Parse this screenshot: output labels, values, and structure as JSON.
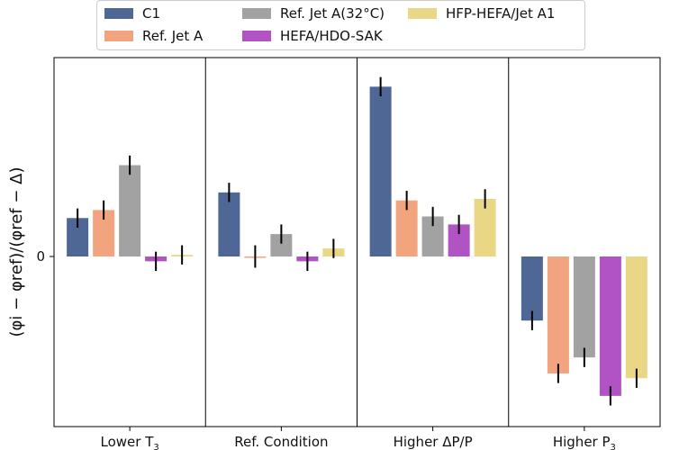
{
  "chart_data": {
    "type": "bar",
    "title": "",
    "xlabel": "",
    "ylabel": "(φi − φref)/(φref − Δ)",
    "ylim": [
      -1.0,
      1.1
    ],
    "grid": false,
    "legend_position": "top",
    "y_ticks": [
      {
        "value": 0,
        "label": "0"
      }
    ],
    "categories": [
      {
        "key": "lower_t3",
        "base": "Lower T",
        "sub": "3"
      },
      {
        "key": "ref_condition",
        "base": "Ref. Condition",
        "sub": ""
      },
      {
        "key": "higher_dp",
        "base": "Higher ΔP/P",
        "sub": ""
      },
      {
        "key": "higher_p3",
        "base": "Higher P",
        "sub": "3"
      }
    ],
    "series": [
      {
        "name": "C1",
        "color": "#4e6795",
        "values": [
          0.24,
          0.4,
          1.06,
          -0.4
        ],
        "errors": [
          0.06,
          0.06,
          0.06,
          0.06
        ]
      },
      {
        "name": "Ref. Jet A",
        "color": "#f2a47f",
        "values": [
          0.29,
          0.0,
          0.35,
          -0.73
        ],
        "errors": [
          0.06,
          0.07,
          0.06,
          0.06
        ]
      },
      {
        "name": "Ref. Jet A(32°C)",
        "color": "#a2a2a2",
        "values": [
          0.57,
          0.14,
          0.25,
          -0.63
        ],
        "errors": [
          0.06,
          0.06,
          0.06,
          0.06
        ]
      },
      {
        "name": "HEFA/HDO-SAK",
        "color": "#b153c2",
        "values": [
          -0.03,
          -0.03,
          0.2,
          -0.87
        ],
        "errors": [
          0.06,
          0.06,
          0.06,
          0.06
        ]
      },
      {
        "name": "HFP-HEFA/Jet A1",
        "color": "#e9d785",
        "values": [
          0.01,
          0.05,
          0.36,
          -0.76
        ],
        "errors": [
          0.06,
          0.06,
          0.06,
          0.06
        ]
      }
    ]
  }
}
